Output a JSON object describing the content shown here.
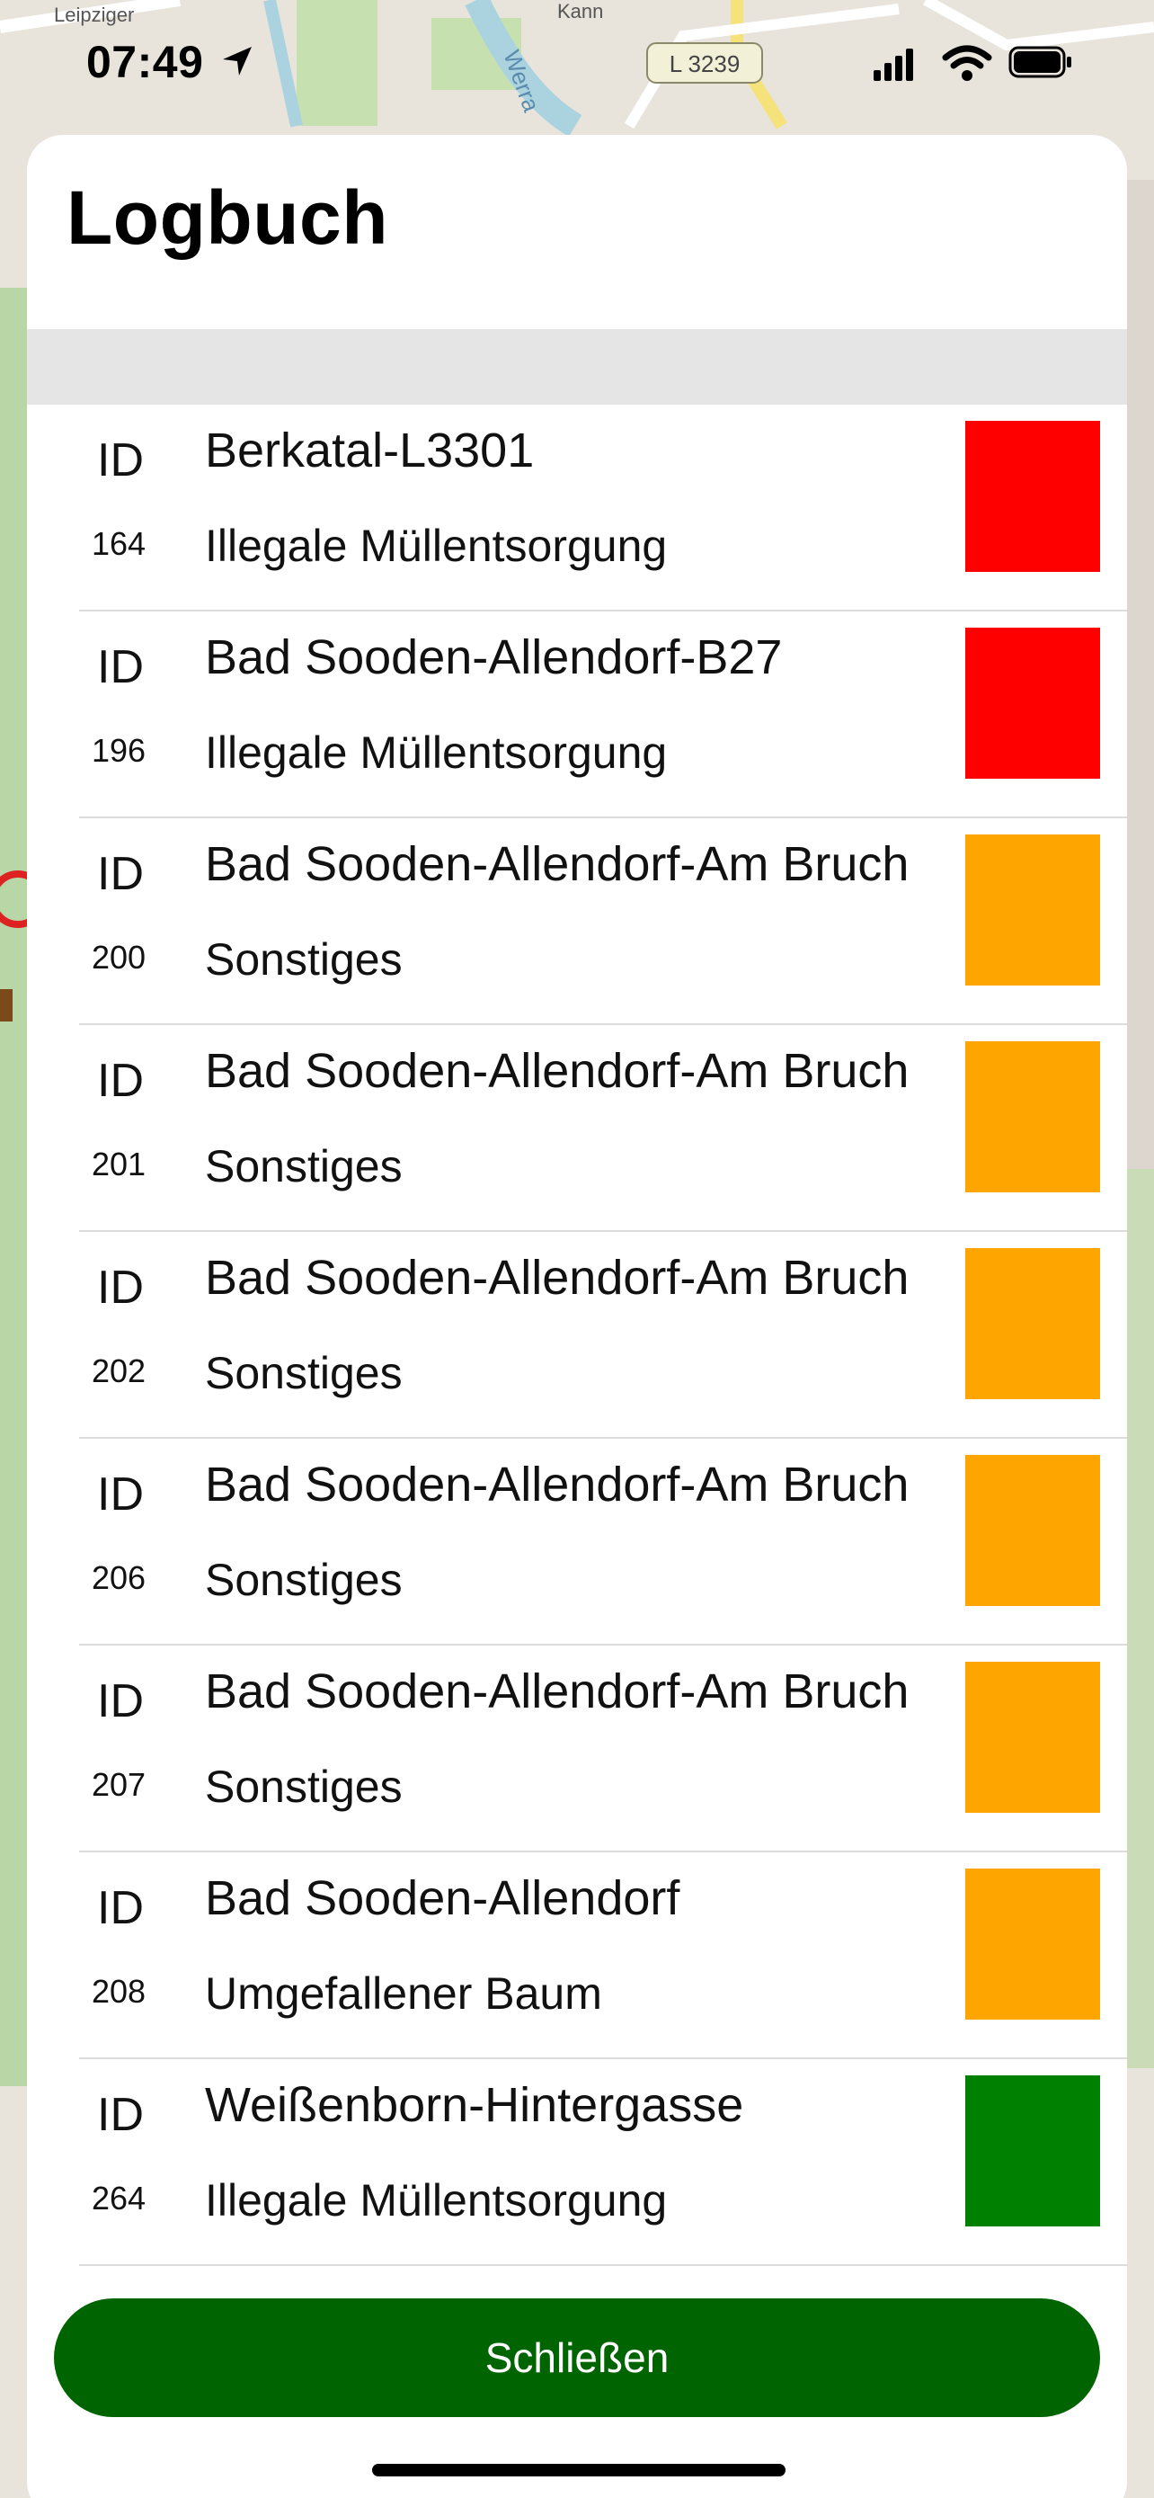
{
  "status_bar": {
    "time": "07:49",
    "icons": [
      "location-arrow-icon",
      "cellular-signal-icon",
      "wifi-icon",
      "battery-icon"
    ]
  },
  "map": {
    "road_badge": "L 3239",
    "river_label": "Werra",
    "street_labels": [
      "Leipziger",
      "Kann"
    ]
  },
  "sheet": {
    "title": "Logbuch"
  },
  "entries": [
    {
      "id_label": "ID",
      "id": "164",
      "location": "Berkatal-L3301",
      "category": "Illegale Müllentsorgung",
      "status_color": "#ff0000"
    },
    {
      "id_label": "ID",
      "id": "196",
      "location": "Bad Sooden-Allendorf-B27",
      "category": "Illegale Müllentsorgung",
      "status_color": "#ff0000"
    },
    {
      "id_label": "ID",
      "id": "200",
      "location": "Bad Sooden-Allendorf-Am Bruch",
      "category": "Sonstiges",
      "status_color": "#ffa500"
    },
    {
      "id_label": "ID",
      "id": "201",
      "location": "Bad Sooden-Allendorf-Am Bruch",
      "category": "Sonstiges",
      "status_color": "#ffa500"
    },
    {
      "id_label": "ID",
      "id": "202",
      "location": "Bad Sooden-Allendorf-Am Bruch",
      "category": "Sonstiges",
      "status_color": "#ffa500"
    },
    {
      "id_label": "ID",
      "id": "206",
      "location": "Bad Sooden-Allendorf-Am Bruch",
      "category": "Sonstiges",
      "status_color": "#ffa500"
    },
    {
      "id_label": "ID",
      "id": "207",
      "location": "Bad Sooden-Allendorf-Am Bruch",
      "category": "Sonstiges",
      "status_color": "#ffa500"
    },
    {
      "id_label": "ID",
      "id": "208",
      "location": "Bad Sooden-Allendorf",
      "category": "Umgefallener Baum",
      "status_color": "#ffa500"
    },
    {
      "id_label": "ID",
      "id": "264",
      "location": "Weißenborn-Hintergasse",
      "category": "Illegale Müllentsorgung",
      "status_color": "#008000"
    }
  ],
  "footer": {
    "close_label": "Schließen",
    "button_color": "#006400"
  }
}
